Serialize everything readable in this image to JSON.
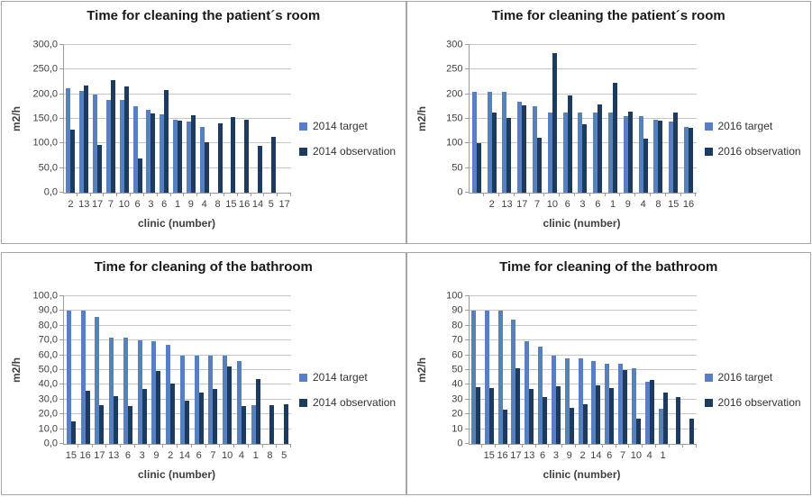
{
  "window": {
    "background": "#FFFFFF"
  },
  "colors": {
    "target_series": "#5880BE",
    "observation_series": "#1D3A5F",
    "gridline": "#C6C6C6",
    "axis_line": "#9C9C9C",
    "tick_text": "#404040",
    "axis_title_text": "#404040",
    "title_text": "#1A1A1A",
    "legend_text": "#333333",
    "panel_border": "#A6A6A6"
  },
  "chart_data": [
    {
      "type": "bar",
      "title": "Time for cleaning the patient´s room",
      "xlabel": "clinic (number)",
      "ylabel": "m2/h",
      "ylim": [
        0,
        300
      ],
      "grid": true,
      "legend_position": "right",
      "ytick_values": [
        0,
        50,
        100,
        150,
        200,
        250,
        300
      ],
      "ytick_labels": [
        "0,0",
        "50,0",
        "100,0",
        "150,0",
        "200,0",
        "250,0",
        "300,0"
      ],
      "categories": [
        "2",
        "13",
        "17",
        "7",
        "10",
        "6",
        "3",
        "6",
        "1",
        "9",
        "4",
        "8",
        "15",
        "16",
        "14",
        "5",
        "17"
      ],
      "series": [
        {
          "name": "2014 target",
          "color": "target",
          "values": [
            213,
            207,
            200,
            188,
            188,
            175,
            168,
            160,
            149,
            145,
            133,
            null,
            null,
            null,
            null,
            null,
            null
          ]
        },
        {
          "name": "2014 observation",
          "color": "observation",
          "values": [
            128,
            218,
            97,
            228,
            215,
            70,
            161,
            209,
            147,
            157,
            103,
            141,
            153,
            148,
            95,
            113,
            null
          ]
        }
      ]
    },
    {
      "type": "bar",
      "title": "Time for cleaning the patient´s room",
      "xlabel": "clinic (number)",
      "ylabel": "m2/h",
      "ylim": [
        0,
        300
      ],
      "grid": true,
      "legend_position": "right",
      "ytick_values": [
        0,
        50,
        100,
        150,
        200,
        250,
        300
      ],
      "ytick_labels": [
        "0",
        "50",
        "100",
        "150",
        "200",
        "250",
        "300"
      ],
      "categories": [
        "",
        "2",
        "13",
        "17",
        "7",
        "10",
        "6",
        "3",
        "6",
        "1",
        "9",
        "4",
        "8",
        "15",
        "16"
      ],
      "series": [
        {
          "name": "2016 target",
          "color": "target",
          "values": [
            204,
            204,
            204,
            185,
            175,
            162,
            162,
            162,
            162,
            162,
            155,
            156,
            149,
            144,
            133
          ]
        },
        {
          "name": "2016 observation",
          "color": "observation",
          "values": [
            100,
            162,
            151,
            178,
            112,
            283,
            197,
            139,
            179,
            223,
            164,
            110,
            146,
            162,
            132
          ]
        }
      ]
    },
    {
      "type": "bar",
      "title": "Time for cleaning of the bathroom",
      "xlabel": "clinic (number)",
      "ylabel": "m2/h",
      "ylim": [
        0,
        100
      ],
      "grid": true,
      "legend_position": "right",
      "ytick_values": [
        0,
        10,
        20,
        30,
        40,
        50,
        60,
        70,
        80,
        90,
        100
      ],
      "ytick_labels": [
        "0,0",
        "10,0",
        "20,0",
        "30,0",
        "40,0",
        "50,0",
        "60,0",
        "70,0",
        "80,0",
        "90,0",
        "100,0"
      ],
      "categories": [
        "15",
        "16",
        "17",
        "13",
        "6",
        "3",
        "9",
        "2",
        "14",
        "6",
        "7",
        "10",
        "4",
        "1",
        "8",
        "5"
      ],
      "series": [
        {
          "name": "2014 target",
          "color": "target",
          "values": [
            90,
            90,
            86,
            72,
            72,
            70,
            69.5,
            67,
            60,
            60,
            60,
            60,
            56,
            26,
            null,
            null
          ]
        },
        {
          "name": "2014 observation",
          "color": "observation",
          "values": [
            15,
            36,
            26,
            32.5,
            25.5,
            37,
            49.5,
            41,
            29,
            35,
            37,
            52.5,
            25.5,
            44,
            26,
            27
          ]
        }
      ]
    },
    {
      "type": "bar",
      "title": "Time for cleaning of the bathroom",
      "xlabel": "clinic (number)",
      "ylabel": "m2/h",
      "ylim": [
        0,
        100
      ],
      "grid": true,
      "legend_position": "right",
      "ytick_values": [
        0,
        10,
        20,
        30,
        40,
        50,
        60,
        70,
        80,
        90,
        100
      ],
      "ytick_labels": [
        "0",
        "10",
        "20",
        "30",
        "40",
        "50",
        "60",
        "70",
        "80",
        "90",
        "100"
      ],
      "categories": [
        "",
        "15",
        "16",
        "17",
        "13",
        "6",
        "3",
        "9",
        "2",
        "14",
        "6",
        "7",
        "10",
        "4",
        "1",
        "",
        ""
      ],
      "series": [
        {
          "name": "2016 target",
          "color": "target",
          "values": [
            90,
            90,
            90,
            84,
            69.5,
            66,
            60,
            58,
            58,
            56,
            54,
            54,
            51,
            42,
            24,
            null,
            null
          ]
        },
        {
          "name": "2016 observation",
          "color": "observation",
          "values": [
            38.5,
            38,
            23,
            51.5,
            37,
            32,
            39,
            24.5,
            27,
            39.5,
            38,
            50,
            17,
            43.5,
            34.5,
            31.5,
            17
          ]
        }
      ]
    }
  ]
}
